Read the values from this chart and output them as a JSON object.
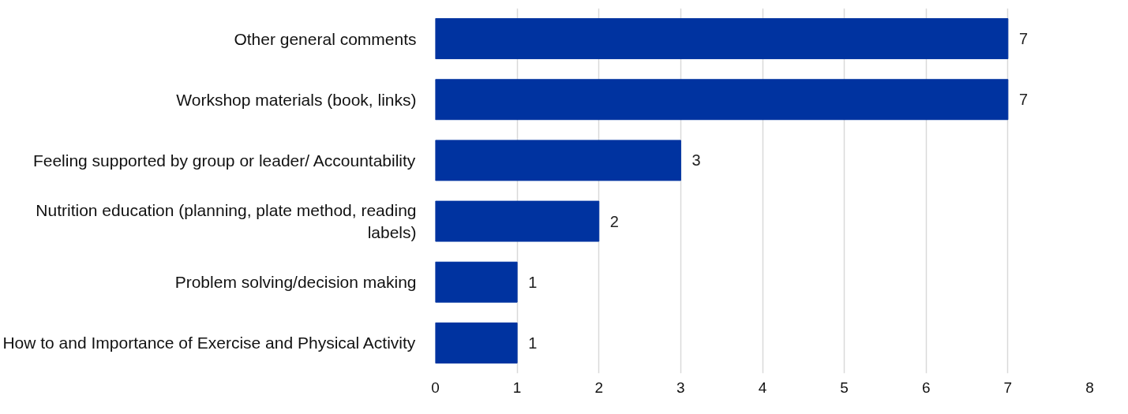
{
  "chart_data": {
    "type": "bar",
    "orientation": "horizontal",
    "categories": [
      "Other general comments",
      "Workshop materials (book, links)",
      "Feeling supported by group or leader/ Accountability",
      "Nutrition education (planning, plate method, reading labels)",
      "Problem solving/decision making",
      "How to and Importance of Exercise and Physical Activity"
    ],
    "values": [
      7,
      7,
      3,
      2,
      1,
      1
    ],
    "color": "#0033a0",
    "xlim": [
      0,
      8
    ],
    "xticks": [
      0,
      1,
      2,
      3,
      4,
      5,
      6,
      7,
      8
    ],
    "grid": "x",
    "data_labels": true
  }
}
